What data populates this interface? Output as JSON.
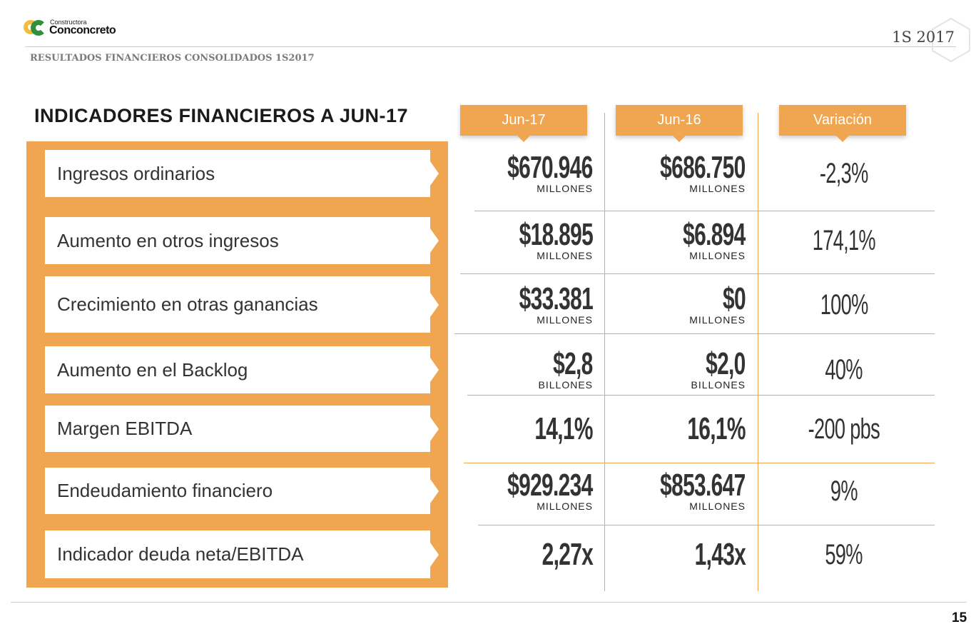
{
  "header": {
    "logo_small": "Constructora",
    "logo_big": "Conconcreto",
    "period": "1S 2017",
    "subtitle": "RESULTADOS FINANCIEROS CONSOLIDADOS 1S2017"
  },
  "title": "INDICADORES FINANCIEROS A JUN-17",
  "columns": [
    "Jun-17",
    "Jun-16",
    "Variación"
  ],
  "rows": [
    {
      "label": "Ingresos ordinarios",
      "jun17": "$670.946",
      "u17": "MILLONES",
      "jun16": "$686.750",
      "u16": "MILLONES",
      "var": "-2,3%"
    },
    {
      "label": "Aumento en otros ingresos",
      "jun17": "$18.895",
      "u17": "MILLONES",
      "jun16": "$6.894",
      "u16": "MILLONES",
      "var": "174,1%"
    },
    {
      "label": "Crecimiento en otras ganancias",
      "jun17": "$33.381",
      "u17": "MILLONES",
      "jun16": "$0",
      "u16": "MILLONES",
      "var": "100%"
    },
    {
      "label": "Aumento en el Backlog",
      "jun17": "$2,8",
      "u17": "BILLONES",
      "jun16": "$2,0",
      "u16": "BILLONES",
      "var": "40%"
    },
    {
      "label": "Margen EBITDA",
      "jun17": "14,1%",
      "jun16": "16,1%",
      "var": "-200 pbs"
    },
    {
      "label": "Endeudamiento financiero",
      "jun17": "$929.234",
      "u17": "MILLONES",
      "jun16": "$853.647",
      "u16": "MILLONES",
      "var": "9%"
    },
    {
      "label": "Indicador deuda neta/EBITDA",
      "jun17": "2,27x",
      "jun16": "1,43x",
      "var": "59%"
    }
  ],
  "page_number": "15",
  "colors": {
    "accent": "#f0a650"
  }
}
